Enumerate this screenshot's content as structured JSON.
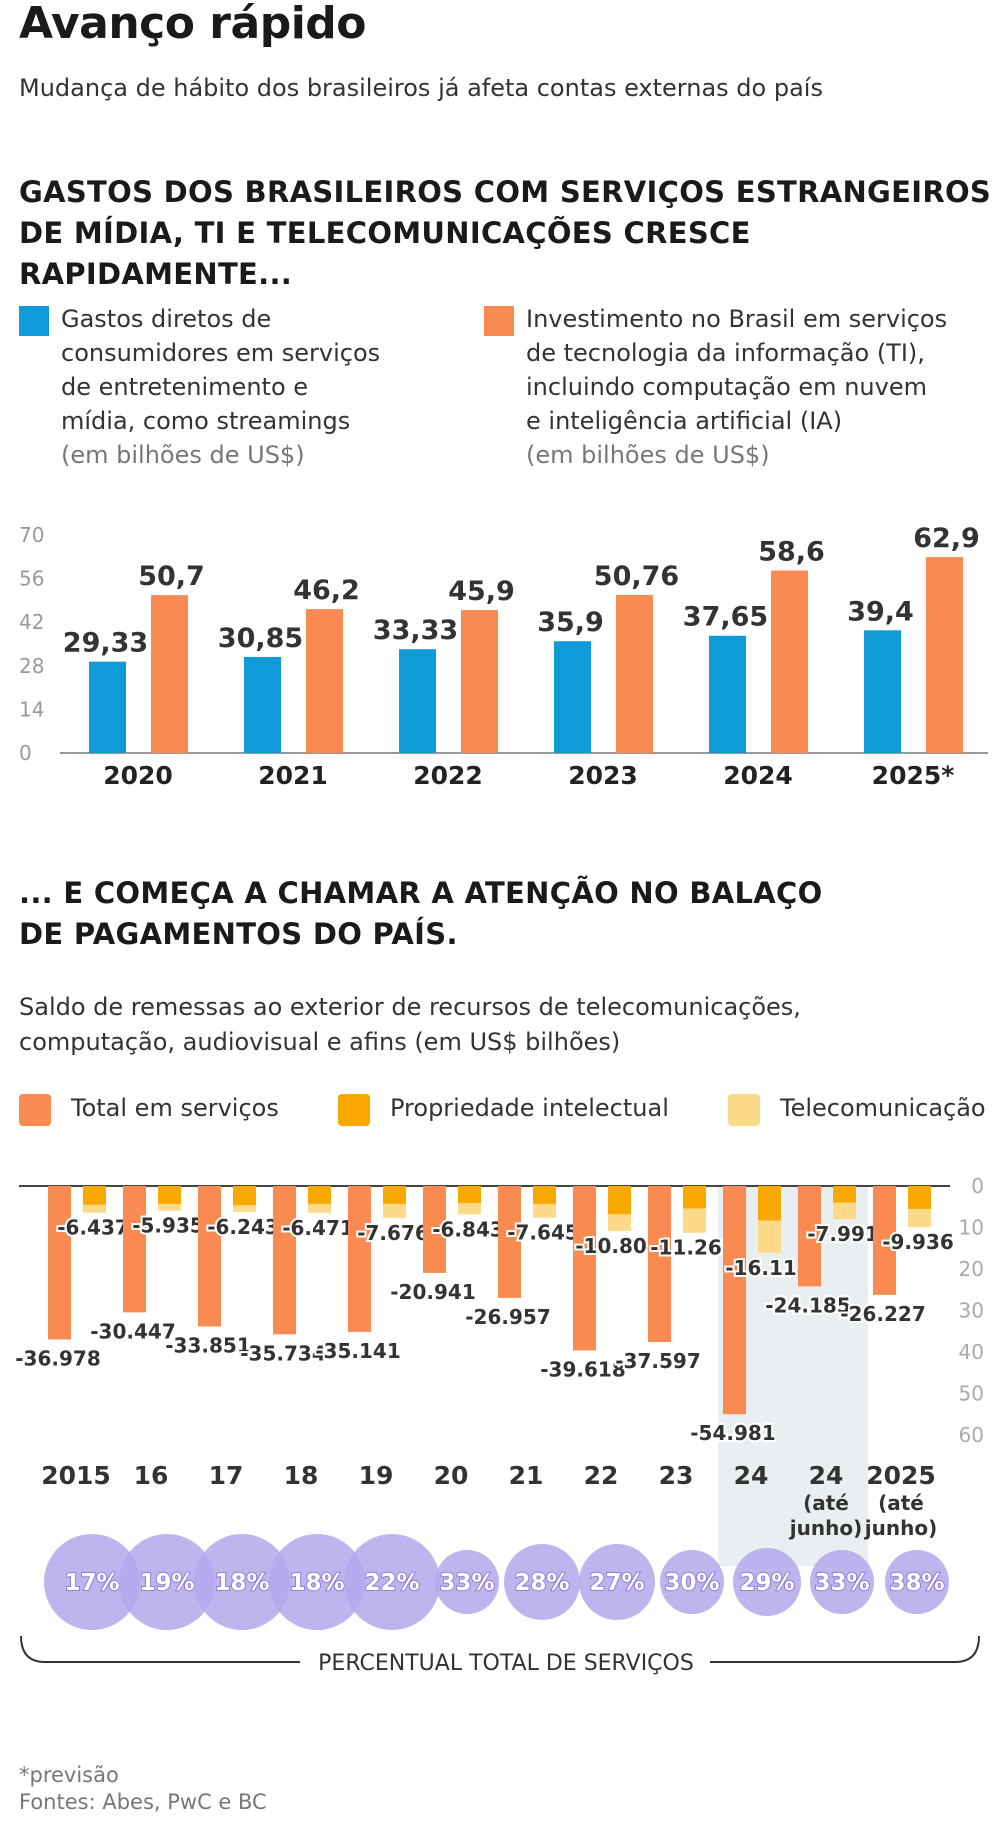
{
  "header": {
    "title": "Avanço rápido",
    "subtitle": "Mudança de hábito dos brasileiros já afeta contas externas do país"
  },
  "section1": {
    "heading_line1": "GASTOS DOS BRASILEIROS COM SERVIÇOS ESTRANGEIROS",
    "heading_line2": "DE MÍDIA, TI E TELECOMUNICAÇÕES CRESCE RAPIDAMENTE...",
    "legend": [
      {
        "lines": [
          "Gastos diretos de",
          "consumidores em serviços",
          "de entretenimento e",
          "mídia, como streamings"
        ],
        "unit": "(em bilhões de US$)",
        "color": "#0f9bd7"
      },
      {
        "lines": [
          "Investimento no Brasil em serviços",
          "de tecnologia da informação (TI),",
          "incluindo computação em nuvem",
          "e inteligência artificial (IA)"
        ],
        "unit": "(em bilhões de US$)",
        "color": "#f88a52"
      }
    ]
  },
  "section2": {
    "heading_line1": "... E COMEÇA A CHAMAR A ATENÇÃO NO BALAÇO",
    "heading_line2": "DE PAGAMENTOS DO PAÍS.",
    "subtitle_line1": "Saldo de remessas ao exterior de recursos de telecomunicações,",
    "subtitle_line2": "computação, audiovisual e afins (em US$ bilhões)",
    "legend": [
      {
        "label": "Total em serviços",
        "color": "#f88a52"
      },
      {
        "label": "Propriedade intelectual",
        "color": "#f9a800"
      },
      {
        "label": "Telecomunicação",
        "color": "#fdd98a"
      }
    ],
    "bracket_label": "PERCENTUAL TOTAL DE SERVIÇOS"
  },
  "footer": {
    "note": "*previsão",
    "sources": "Fontes: Abes, PwC e BC"
  },
  "chart_data": [
    {
      "type": "bar",
      "categories": [
        "2020",
        "2021",
        "2022",
        "2023",
        "2024",
        "2025*"
      ],
      "series": [
        {
          "values": [
            29.33,
            30.85,
            33.33,
            35.9,
            37.65,
            39.4
          ],
          "labels": [
            "29,33",
            "30,85",
            "33,33",
            "35,9",
            "37,65",
            "39,4"
          ],
          "color": "#0f9bd7"
        },
        {
          "values": [
            50.7,
            46.2,
            45.9,
            50.76,
            58.6,
            62.9
          ],
          "labels": [
            "50,7",
            "46,2",
            "45,9",
            "50,76",
            "58,6",
            "62,9"
          ],
          "color": "#f88a52"
        }
      ],
      "yticks": [
        "0",
        "14",
        "28",
        "42",
        "56",
        "70"
      ],
      "ylim": [
        0,
        70
      ],
      "grid": false
    },
    {
      "type": "bar",
      "categories": [
        "2015",
        "16",
        "17",
        "18",
        "19",
        "20",
        "21",
        "22",
        "23",
        "24",
        "24",
        "2025"
      ],
      "category_notes": [
        "",
        "",
        "",
        "",
        "",
        "",
        "",
        "",
        "",
        "",
        "(até junho)",
        "(até junho)"
      ],
      "series": [
        {
          "name": "Total em serviços",
          "values": [
            -36.978,
            -30.447,
            -33.851,
            -35.734,
            -35.141,
            -20.941,
            -26.957,
            -39.618,
            -37.597,
            -54.981,
            -24.185,
            -26.227
          ],
          "labels": [
            "-36.978",
            "-30.447",
            "-33.851",
            "-35.734",
            "-35.141",
            "-20.941",
            "-26.957",
            "-39.618",
            "-37.597",
            "-54.981",
            "-24.185",
            "-26.227"
          ]
        },
        {
          "name": "Telecomunicação",
          "values": [
            -6.437,
            -5.935,
            -6.243,
            -6.471,
            -7.676,
            -6.843,
            -7.645,
            -10.804,
            -11.263,
            -16.114,
            -7.991,
            -9.936
          ],
          "labels": [
            "-6.437",
            "-5.935",
            "-6.243",
            "-6.471",
            "-7.676",
            "-6.843",
            "-7.645",
            "-10.804",
            "-11.263",
            "-16.114",
            "-7.991",
            "-9.936"
          ]
        },
        {
          "name": "Propriedade intelectual",
          "values": [
            -4.5,
            -4.3,
            -4.6,
            -4.3,
            -4.3,
            -4.1,
            -4.3,
            -6.8,
            -5.4,
            -8.3,
            -4.0,
            -5.5
          ]
        }
      ],
      "percent_total": [
        "17%",
        "19%",
        "18%",
        "18%",
        "22%",
        "33%",
        "28%",
        "27%",
        "30%",
        "29%",
        "33%",
        "38%"
      ],
      "yticks": [
        "0",
        "10",
        "20",
        "30",
        "40",
        "50",
        "60"
      ],
      "ylim": [
        -60,
        0
      ],
      "highlight": [
        "24",
        "24 (até junho)"
      ],
      "grid": false
    }
  ]
}
